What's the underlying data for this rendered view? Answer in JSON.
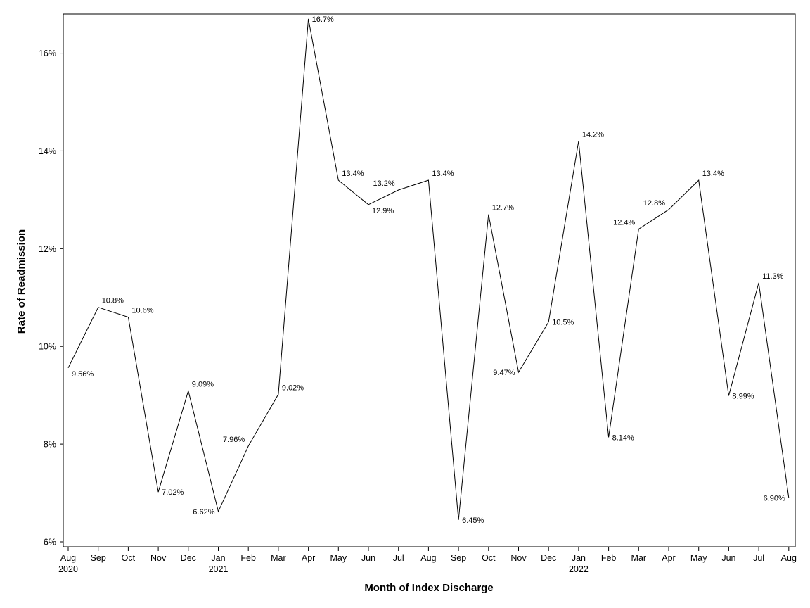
{
  "chart_data": {
    "type": "line",
    "xlabel": "Month of Index Discharge",
    "ylabel": "Rate of Readmission",
    "ylim": [
      6,
      16.8
    ],
    "yticks": [
      6,
      8,
      10,
      12,
      14,
      16
    ],
    "ytick_labels": [
      "6%",
      "8%",
      "10%",
      "12%",
      "14%",
      "16%"
    ],
    "grid": false,
    "legend": "none",
    "line_color": "#000000",
    "categories": [
      "Aug 2020",
      "Sep 2020",
      "Oct 2020",
      "Nov 2020",
      "Dec 2020",
      "Jan 2021",
      "Feb 2021",
      "Mar 2021",
      "Apr 2021",
      "May 2021",
      "Jun 2021",
      "Jul 2021",
      "Aug 2021",
      "Sep 2021",
      "Oct 2021",
      "Nov 2021",
      "Dec 2021",
      "Jan 2022",
      "Feb 2022",
      "Mar 2022",
      "Apr 2022",
      "May 2022",
      "Jun 2022",
      "Jul 2022",
      "Aug 2022"
    ],
    "tick_month_labels": [
      "Aug",
      "Sep",
      "Oct",
      "Nov",
      "Dec",
      "Jan",
      "Feb",
      "Mar",
      "Apr",
      "May",
      "Jun",
      "Jul",
      "Aug",
      "Sep",
      "Oct",
      "Nov",
      "Dec",
      "Jan",
      "Feb",
      "Mar",
      "Apr",
      "May",
      "Jun",
      "Jul",
      "Aug"
    ],
    "tick_year_labels": [
      "2020",
      "",
      "",
      "",
      "",
      "2021",
      "",
      "",
      "",
      "",
      "",
      "",
      "",
      "",
      "",
      "",
      "",
      "2022",
      "",
      "",
      "",
      "",
      "",
      "",
      ""
    ],
    "values": [
      9.56,
      10.8,
      10.6,
      7.02,
      9.09,
      6.62,
      7.96,
      9.02,
      16.7,
      13.4,
      12.9,
      13.2,
      13.4,
      6.45,
      12.7,
      9.47,
      10.5,
      14.2,
      8.14,
      12.4,
      12.8,
      13.4,
      8.99,
      11.3,
      6.9
    ],
    "data_labels": [
      "9.56%",
      "10.8%",
      "10.6%",
      "7.02%",
      "9.09%",
      "6.62%",
      "7.96%",
      "9.02%",
      "16.7%",
      "13.4%",
      "12.9%",
      "13.2%",
      "13.4%",
      "6.45%",
      "12.7%",
      "9.47%",
      "10.5%",
      "14.2%",
      "8.14%",
      "12.4%",
      "12.8%",
      "13.4%",
      "8.99%",
      "11.3%",
      "6.90%"
    ],
    "label_placement": [
      "below-right",
      "above-right",
      "above-right",
      "right",
      "above-right",
      "left",
      "above-left",
      "above-right",
      "right",
      "above-right",
      "below-right",
      "above-left",
      "above-right",
      "right",
      "above-right",
      "left",
      "right",
      "above-right",
      "right",
      "above-left",
      "above-left",
      "above-right",
      "right",
      "above-right",
      "left"
    ]
  }
}
